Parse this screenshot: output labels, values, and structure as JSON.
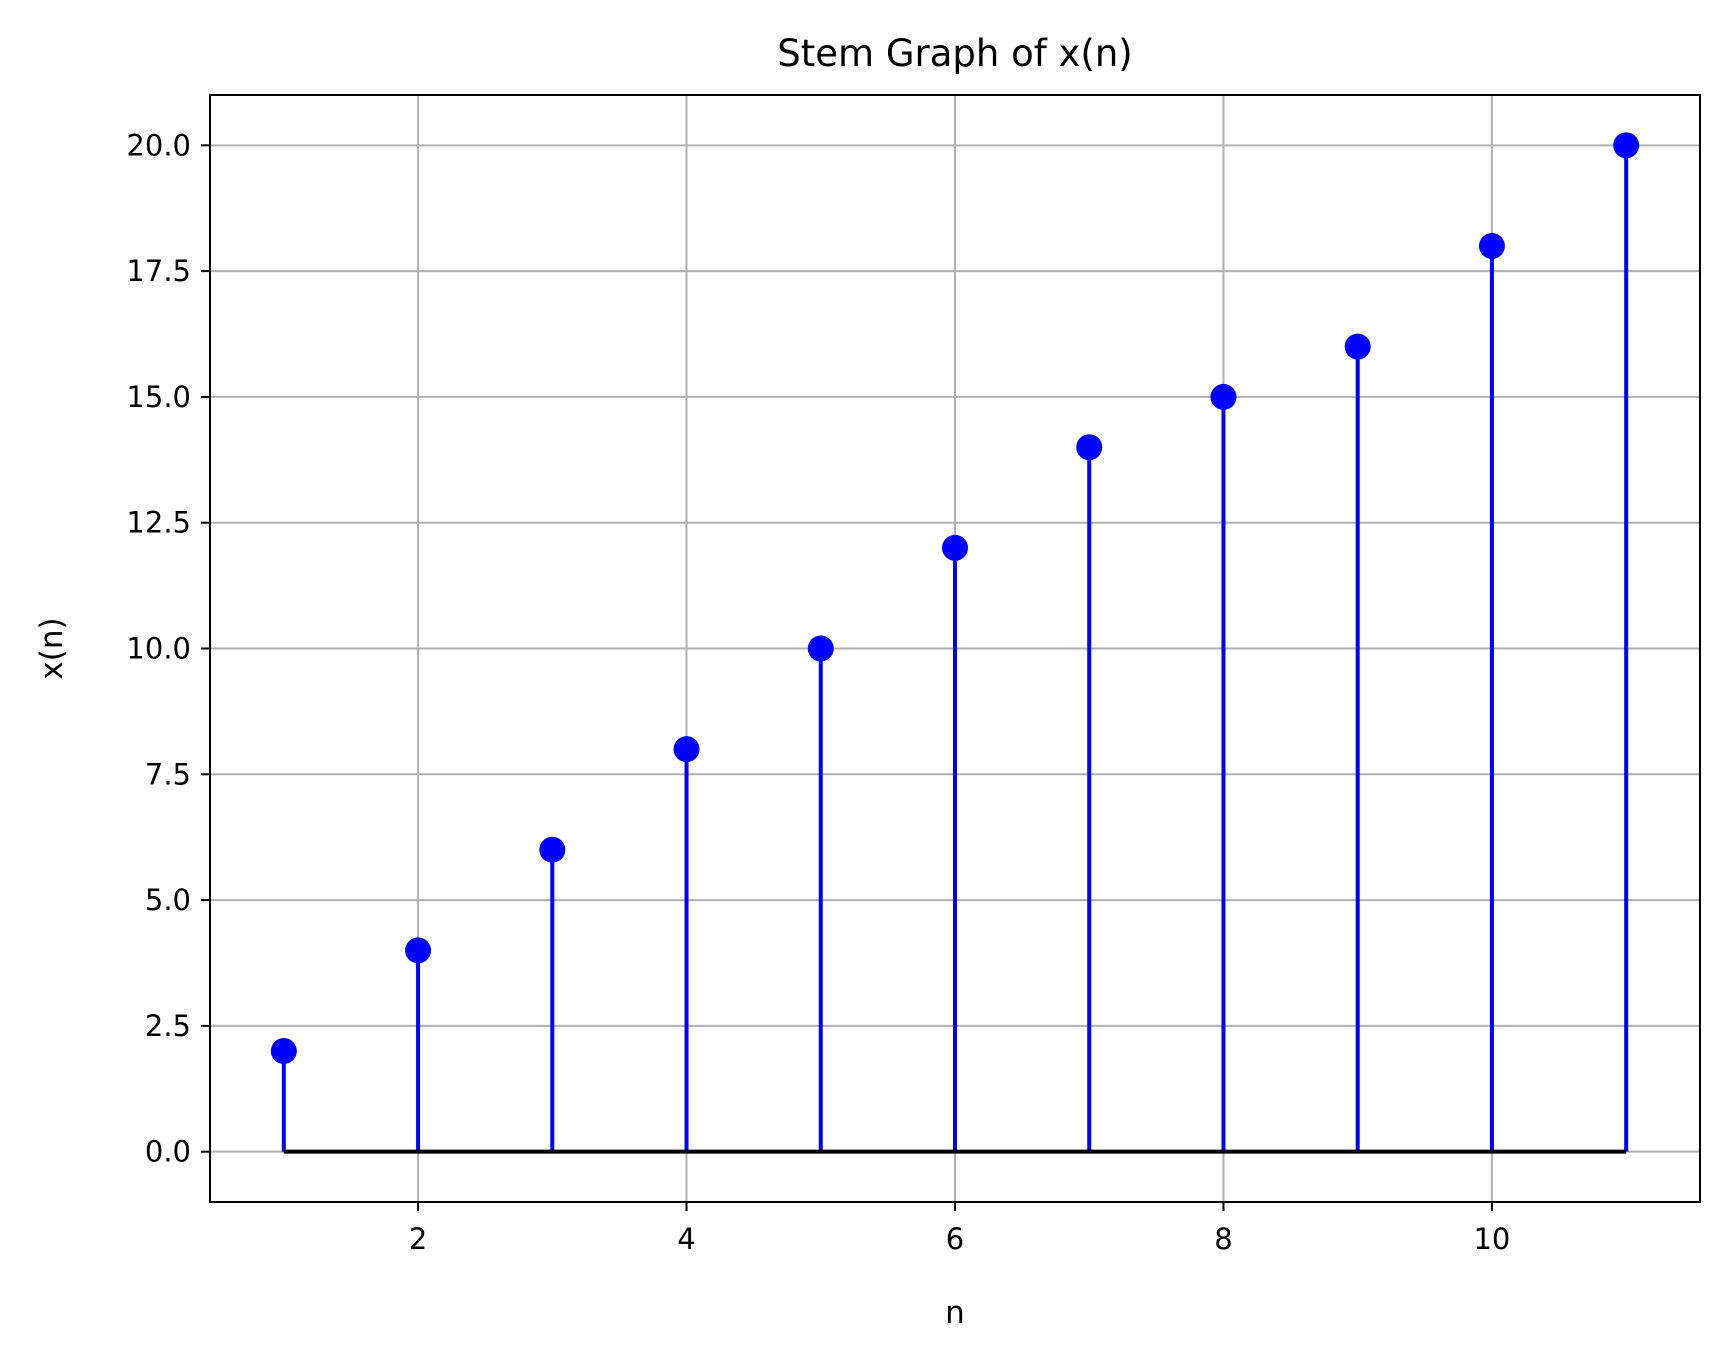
{
  "chart_data": {
    "type": "stem",
    "title": "Stem Graph of x(n)",
    "xlabel": "n",
    "ylabel": "x(n)",
    "x": [
      1,
      2,
      3,
      4,
      5,
      6,
      7,
      8,
      9,
      10,
      11
    ],
    "values": [
      2,
      4,
      6,
      8,
      10,
      12,
      14,
      15,
      16,
      18,
      20
    ],
    "baseline": 0,
    "xlim": [
      0.45,
      11.55
    ],
    "ylim": [
      -1,
      21
    ],
    "xticks": [
      2,
      4,
      6,
      8,
      10
    ],
    "xtick_labels": [
      "2",
      "4",
      "6",
      "8",
      "10"
    ],
    "yticks": [
      0,
      2.5,
      5,
      7.5,
      10,
      12.5,
      15,
      17.5,
      20
    ],
    "ytick_labels": [
      "0.0",
      "2.5",
      "5.0",
      "7.5",
      "10.0",
      "12.5",
      "15.0",
      "17.5",
      "20.0"
    ],
    "grid": true,
    "legend": false,
    "colors": {
      "stem": "#0000ff",
      "marker": "#0000ff",
      "baseline": "#000000",
      "grid": "#b0b0b0",
      "axes": "#000000"
    }
  }
}
